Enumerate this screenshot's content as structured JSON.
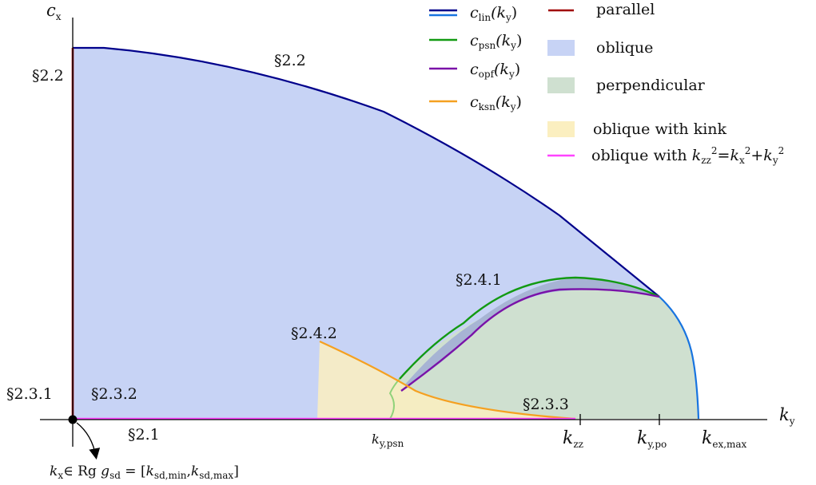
{
  "axes": {
    "x_label": "k",
    "x_label_sub": "y",
    "y_label": "c",
    "y_label_sub": "x"
  },
  "legend": {
    "c_lin": {
      "base": "c",
      "sub": "lin",
      "arg": "(k",
      "arg_sub": "y",
      "close": ")",
      "color_dark": "#00008b",
      "color_light": "#1874e0"
    },
    "c_psn": {
      "base": "c",
      "sub": "psn",
      "arg": "(k",
      "arg_sub": "y",
      "close": ")",
      "color": "#129a12"
    },
    "c_opf": {
      "base": "c",
      "sub": "opf",
      "arg": "(k",
      "arg_sub": "y",
      "close": ")",
      "color": "#7a12a8"
    },
    "c_ksn": {
      "base": "c",
      "sub": "ksn",
      "arg": "(k",
      "arg_sub": "y",
      "close": ")",
      "color": "#f5a020"
    },
    "parallel": {
      "label": "parallel",
      "color": "#a00000"
    },
    "oblique": {
      "label": "oblique",
      "color": "#c7d3f5"
    },
    "perpendicular": {
      "label": "perpendicular",
      "color": "#cfe0d0"
    },
    "oblique_kink": {
      "label": "oblique with kink",
      "color": "#fbefc0"
    },
    "oblique_kzz": {
      "label": "oblique with",
      "color": "#ff44ff",
      "formula": {
        "k1": "k",
        "s1": "zz",
        "sup1": "2",
        "eq": "=",
        "k2": "k",
        "s2": "x",
        "sup2": "2",
        "plus": "+",
        "k3": "k",
        "s3": "y",
        "sup3": "2"
      }
    }
  },
  "region_labels": {
    "s22_top": "§2.2",
    "s22_left": "§2.2",
    "s241": "§2.4.1",
    "s242": "§2.4.2",
    "s231": "§2.3.1",
    "s232": "§2.3.2",
    "s233": "§2.3.3",
    "s21": "§2.1"
  },
  "ticks": {
    "ky_psn": {
      "k": "k",
      "sub": "y,psn"
    },
    "kzz": {
      "k": "k",
      "sub": "zz"
    },
    "ky_po": {
      "k": "k",
      "sub": "y,po"
    },
    "kex_max": {
      "k": "k",
      "sub": "ex,max"
    }
  },
  "origin_note": {
    "kx": "k",
    "kx_sub": "x",
    "in": "∈ Rg",
    "g": "g",
    "g_sub": "sd",
    "eq": " = [",
    "k1": "k",
    "k1_sub": "sd,min",
    "comma": ",",
    "k2": "k",
    "k2_sub": "sd,max",
    "close": "]"
  }
}
